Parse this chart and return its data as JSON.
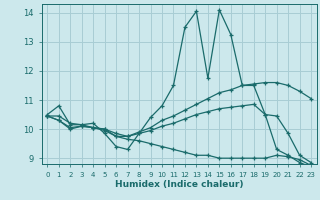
{
  "xlabel": "Humidex (Indice chaleur)",
  "bg_color": "#cce8ec",
  "grid_color": "#a8cdd4",
  "line_color": "#1a6b6b",
  "xlim": [
    -0.5,
    23.5
  ],
  "ylim": [
    8.8,
    14.3
  ],
  "yticks": [
    9,
    10,
    11,
    12,
    13,
    14
  ],
  "xticks": [
    0,
    1,
    2,
    3,
    4,
    5,
    6,
    7,
    8,
    9,
    10,
    11,
    12,
    13,
    14,
    15,
    16,
    17,
    18,
    19,
    20,
    21,
    22,
    23
  ],
  "lines": [
    {
      "x": [
        0,
        1,
        2,
        3,
        4,
        5,
        6,
        7,
        8,
        9,
        10,
        11,
        12,
        13,
        14,
        15,
        16,
        17,
        18,
        19,
        20,
        21,
        22,
        23
      ],
      "y": [
        10.5,
        10.8,
        10.15,
        10.15,
        10.2,
        9.85,
        9.4,
        9.3,
        9.85,
        10.4,
        10.8,
        11.5,
        13.5,
        14.05,
        11.75,
        14.1,
        13.25,
        11.5,
        11.5,
        10.5,
        9.3,
        9.1,
        8.85,
        8.7
      ]
    },
    {
      "x": [
        0,
        1,
        2,
        3,
        4,
        5,
        6,
        7,
        8,
        9,
        10,
        11,
        12,
        13,
        14,
        15,
        16,
        17,
        18,
        19,
        20,
        21,
        22,
        23
      ],
      "y": [
        10.45,
        10.3,
        10.0,
        10.1,
        10.05,
        10.0,
        9.85,
        9.75,
        9.9,
        10.05,
        10.3,
        10.45,
        10.65,
        10.85,
        11.05,
        11.25,
        11.35,
        11.5,
        11.55,
        11.6,
        11.6,
        11.5,
        11.3,
        11.05
      ]
    },
    {
      "x": [
        0,
        1,
        2,
        3,
        4,
        5,
        6,
        7,
        8,
        9,
        10,
        11,
        12,
        13,
        14,
        15,
        16,
        17,
        18,
        19,
        20,
        21,
        22,
        23
      ],
      "y": [
        10.45,
        10.45,
        10.2,
        10.15,
        10.05,
        9.95,
        9.75,
        9.65,
        9.6,
        9.5,
        9.4,
        9.3,
        9.2,
        9.1,
        9.1,
        9.0,
        9.0,
        9.0,
        9.0,
        9.0,
        9.1,
        9.05,
        8.95,
        8.75
      ]
    },
    {
      "x": [
        0,
        1,
        2,
        3,
        4,
        5,
        6,
        7,
        8,
        9,
        10,
        11,
        12,
        13,
        14,
        15,
        16,
        17,
        18,
        19,
        20,
        21,
        22,
        23
      ],
      "y": [
        10.45,
        10.3,
        10.05,
        10.1,
        10.05,
        10.0,
        9.75,
        9.75,
        9.85,
        9.95,
        10.1,
        10.2,
        10.35,
        10.5,
        10.6,
        10.7,
        10.75,
        10.8,
        10.85,
        10.5,
        10.45,
        9.85,
        9.1,
        8.85
      ]
    }
  ]
}
